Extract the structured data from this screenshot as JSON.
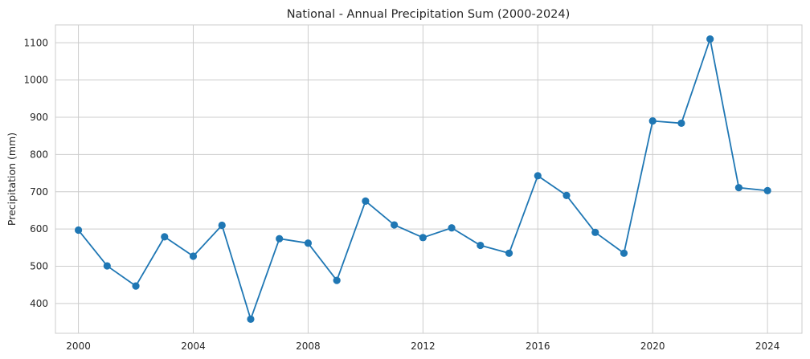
{
  "chart_data": {
    "type": "line",
    "title": "National - Annual Precipitation Sum (2000-2024)",
    "xlabel": "",
    "ylabel": "Precipitation (mm)",
    "xlim": [
      1999.2,
      2025.2
    ],
    "ylim": [
      320,
      1148
    ],
    "xticks": [
      2000,
      2004,
      2008,
      2012,
      2016,
      2020,
      2024
    ],
    "yticks": [
      400,
      500,
      600,
      700,
      800,
      900,
      1000,
      1100
    ],
    "grid": true,
    "marker": "circle",
    "series": [
      {
        "color": "#1f77b4",
        "x": [
          2000,
          2001,
          2002,
          2003,
          2004,
          2005,
          2006,
          2007,
          2008,
          2009,
          2010,
          2011,
          2012,
          2013,
          2014,
          2015,
          2016,
          2017,
          2018,
          2019,
          2020,
          2021,
          2022,
          2023,
          2024
        ],
        "y": [
          597,
          501,
          447,
          579,
          527,
          610,
          358,
          574,
          562,
          462,
          675,
          611,
          577,
          603,
          556,
          535,
          743,
          690,
          591,
          535,
          890,
          884,
          1110,
          711,
          703
        ]
      }
    ]
  }
}
